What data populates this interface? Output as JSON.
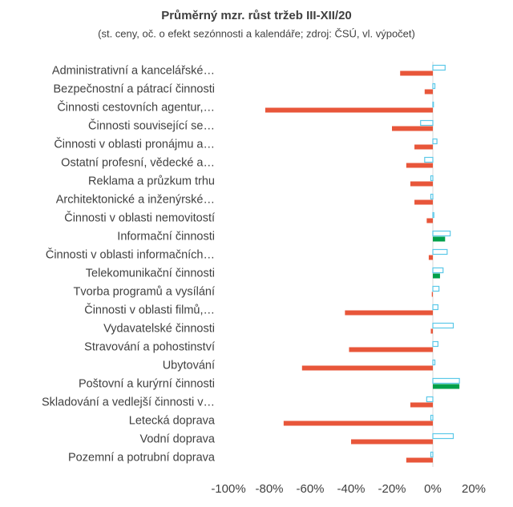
{
  "chart_data": {
    "type": "hbar",
    "title": "Průměrný mzr. růst tržeb III-XII/20",
    "subtitle": "(st. ceny, oč. o efekt sezónnosti a kalendáře; zdroj: ČSÚ, vl. výpočet)",
    "categories": [
      "Administrativní a kancelářské…",
      "Bezpečnostní a pátrací činnosti",
      "Činnosti cestovních agentur,…",
      "Činnosti související se…",
      "Činnosti  v oblasti pronájmu a…",
      "Ostatní profesní, vědecké a…",
      "Reklama a průzkum trhu",
      "Architektonické a inženýrské…",
      "Činnosti v oblasti nemovitostí",
      "Informační činnosti",
      "Činnosti v oblasti informačních…",
      "Telekomunikační činnosti",
      "Tvorba programů a vysílání",
      "Činnosti v oblasti filmů,…",
      "Vydavatelské činnosti",
      "Stravování a pohostinství",
      "Ubytování",
      "Poštovní a kurýrní činnosti",
      "Skladování a vedlejší činnosti v…",
      "Letecká doprava",
      "Vodní doprava",
      "Pozemní a potrubní doprava"
    ],
    "series": [
      {
        "color": "#5bc8e8",
        "style": "outline",
        "values": [
          6,
          1,
          0.3,
          -6,
          2,
          -4,
          -1,
          -1,
          0.5,
          8.5,
          7,
          5,
          3,
          2.5,
          10,
          2.5,
          1,
          13,
          -3,
          -1,
          10,
          -1
        ]
      },
      {
        "color": "#e8563a",
        "positive_color": "#00a04a",
        "style": "filled",
        "values": [
          -16,
          -4,
          -82,
          -20,
          -9,
          -13,
          -11,
          -9,
          -3,
          6,
          -2,
          3.5,
          -0.5,
          -43,
          -1,
          -41,
          -64,
          13,
          -11,
          -73,
          -40,
          -13
        ]
      }
    ],
    "xlim": [
      -100,
      20
    ],
    "xticks": [
      {
        "value": -100,
        "label": "-100%"
      },
      {
        "value": -80,
        "label": "-80%"
      },
      {
        "value": -60,
        "label": "-60%"
      },
      {
        "value": -40,
        "label": "-40%"
      },
      {
        "value": -20,
        "label": "-20%"
      },
      {
        "value": 0,
        "label": "0%"
      },
      {
        "value": 20,
        "label": "20%"
      }
    ]
  }
}
